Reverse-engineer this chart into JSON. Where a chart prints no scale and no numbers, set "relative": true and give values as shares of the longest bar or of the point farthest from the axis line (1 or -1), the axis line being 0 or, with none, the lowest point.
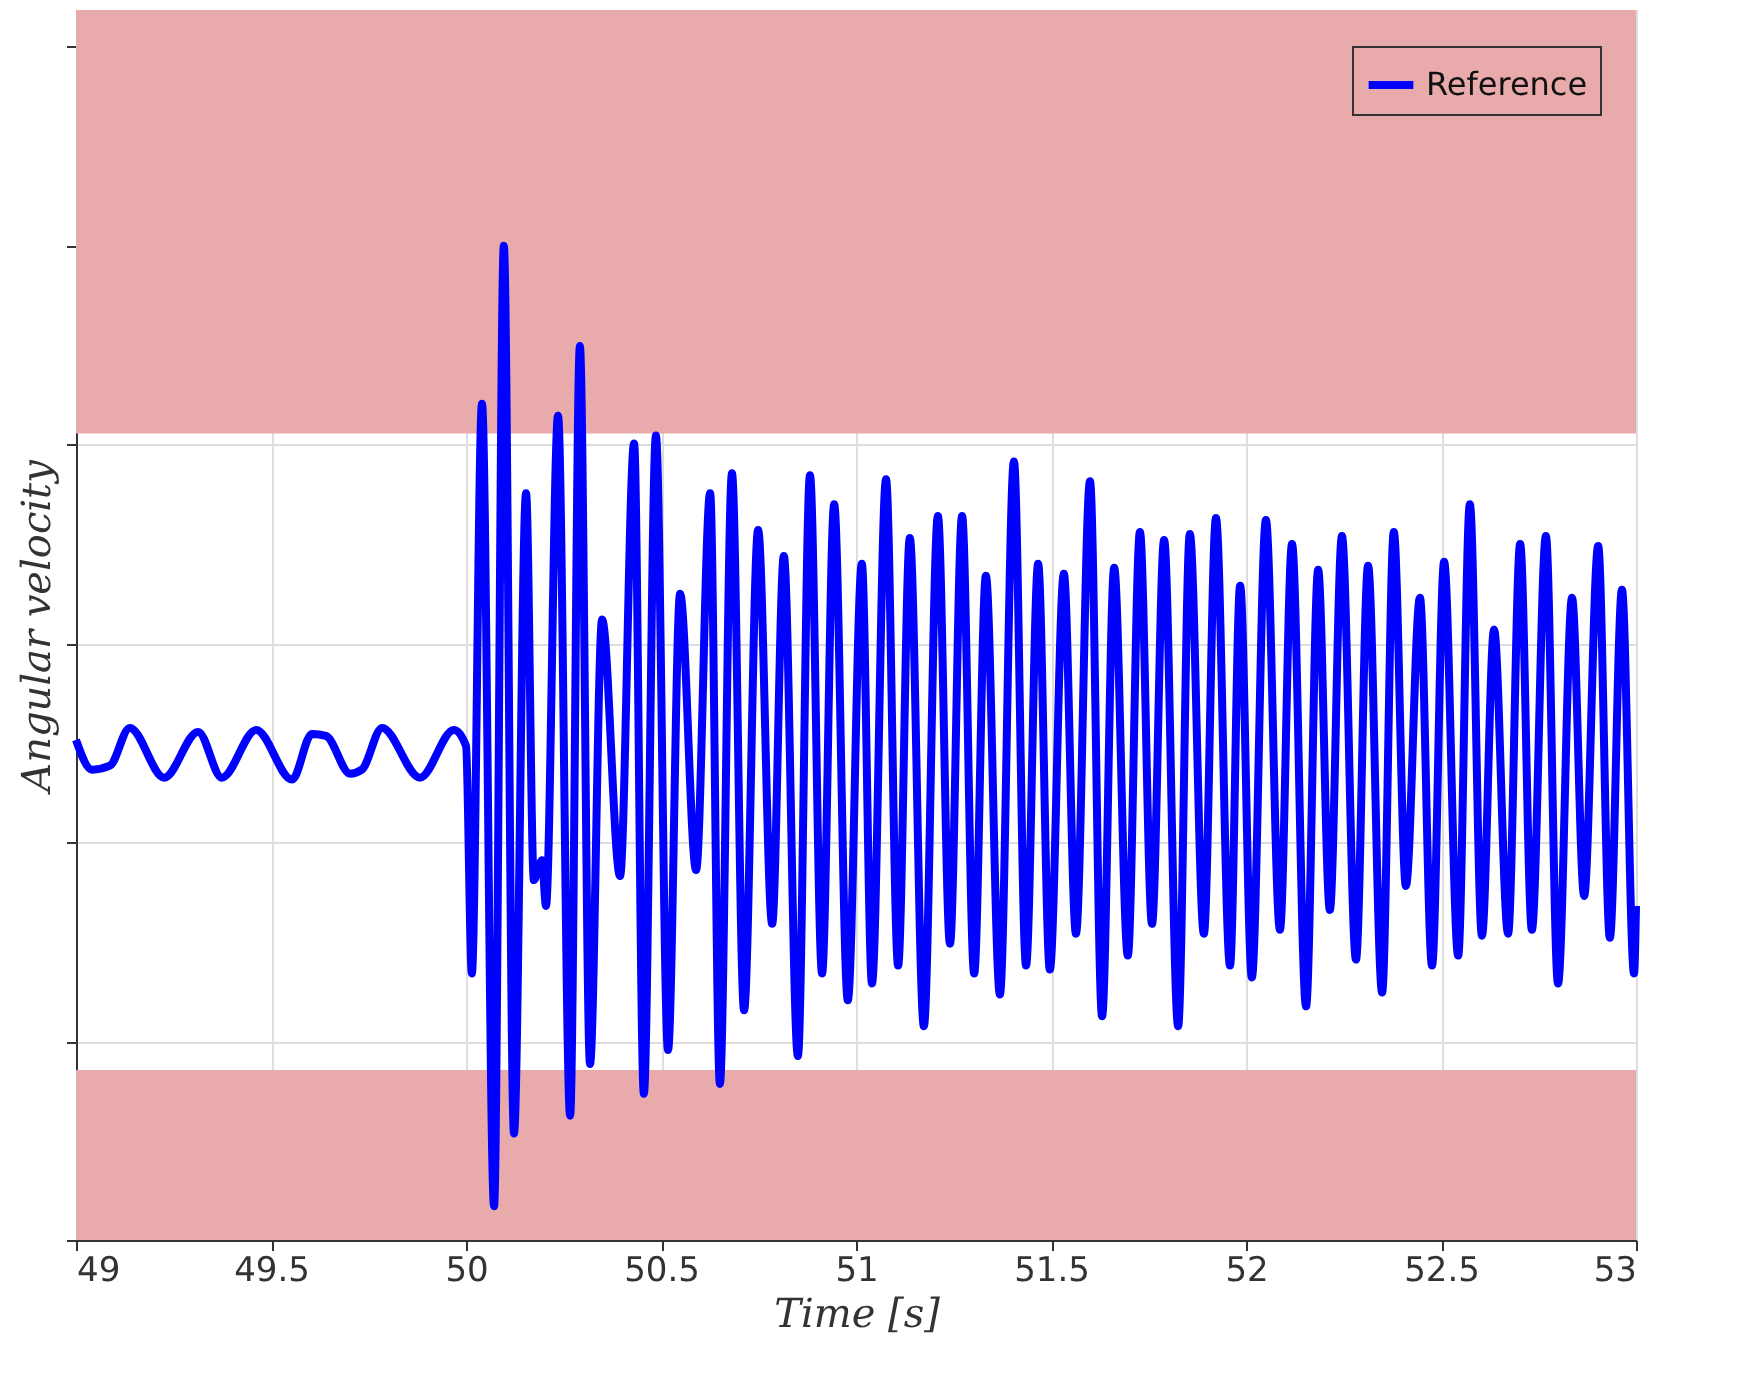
{
  "chart_data": {
    "type": "line",
    "xlabel": "Time [s]",
    "ylabel": "Angular velocity",
    "relative": true,
    "xlim": [
      49,
      53
    ],
    "xticks": [
      49,
      49.5,
      50,
      50.5,
      51,
      51.5,
      52,
      52.5,
      53
    ],
    "grid": true,
    "legend": "top right",
    "line_style": "solid",
    "marker": "none",
    "tick_labels": "x",
    "bands": [
      {
        "axis": "y",
        "from": 0.811,
        "to": 1.237,
        "color": "#e8aaaa"
      },
      {
        "axis": "y",
        "from": 0,
        "to": 0.171,
        "color": "#e8aaaa"
      }
    ],
    "series": [
      {
        "name": "Reference",
        "color": "#0000ff",
        "x": [
          49.0,
          49.041,
          49.087,
          49.138,
          49.226,
          49.313,
          49.374,
          49.462,
          49.554,
          49.605,
          49.641,
          49.703,
          49.733,
          49.785,
          49.882,
          49.969,
          50.0,
          50.015,
          50.041,
          50.072,
          50.097,
          50.123,
          50.154,
          50.174,
          50.195,
          50.205,
          50.236,
          50.267,
          50.292,
          50.318,
          50.349,
          50.395,
          50.431,
          50.456,
          50.487,
          50.518,
          50.549,
          50.59,
          50.626,
          50.651,
          50.682,
          50.713,
          50.749,
          50.785,
          50.815,
          50.851,
          50.882,
          50.913,
          50.944,
          50.979,
          51.015,
          51.041,
          51.077,
          51.108,
          51.138,
          51.174,
          51.21,
          51.241,
          51.272,
          51.303,
          51.333,
          51.369,
          51.405,
          51.436,
          51.467,
          51.497,
          51.533,
          51.564,
          51.6,
          51.631,
          51.662,
          51.697,
          51.728,
          51.759,
          51.79,
          51.826,
          51.856,
          51.892,
          51.923,
          51.959,
          51.985,
          52.015,
          52.051,
          52.087,
          52.118,
          52.154,
          52.185,
          52.215,
          52.246,
          52.282,
          52.313,
          52.349,
          52.379,
          52.41,
          52.446,
          52.477,
          52.508,
          52.544,
          52.574,
          52.605,
          52.636,
          52.672,
          52.703,
          52.733,
          52.769,
          52.8,
          52.836,
          52.867,
          52.903,
          52.933,
          52.964,
          52.995,
          53.0
        ],
        "values": [
          0.503,
          0.473,
          0.477,
          0.515,
          0.465,
          0.511,
          0.465,
          0.513,
          0.463,
          0.509,
          0.507,
          0.469,
          0.473,
          0.515,
          0.465,
          0.513,
          0.497,
          0.268,
          0.841,
          0.034,
          1,
          0.107,
          0.751,
          0.362,
          0.382,
          0.336,
          0.829,
          0.125,
          0.899,
          0.177,
          0.624,
          0.366,
          0.801,
          0.147,
          0.809,
          0.191,
          0.65,
          0.372,
          0.751,
          0.157,
          0.771,
          0.231,
          0.714,
          0.318,
          0.688,
          0.185,
          0.769,
          0.268,
          0.74,
          0.241,
          0.68,
          0.258,
          0.765,
          0.276,
          0.706,
          0.215,
          0.728,
          0.298,
          0.728,
          0.268,
          0.668,
          0.247,
          0.783,
          0.276,
          0.68,
          0.272,
          0.67,
          0.308,
          0.763,
          0.225,
          0.676,
          0.286,
          0.712,
          0.318,
          0.704,
          0.215,
          0.71,
          0.308,
          0.726,
          0.276,
          0.658,
          0.264,
          0.724,
          0.312,
          0.7,
          0.235,
          0.674,
          0.332,
          0.708,
          0.282,
          0.678,
          0.249,
          0.712,
          0.356,
          0.646,
          0.276,
          0.682,
          0.286,
          0.74,
          0.306,
          0.614,
          0.308,
          0.7,
          0.312,
          0.708,
          0.258,
          0.646,
          0.346,
          0.698,
          0.304,
          0.654,
          0.268,
          0.336
        ]
      }
    ]
  }
}
